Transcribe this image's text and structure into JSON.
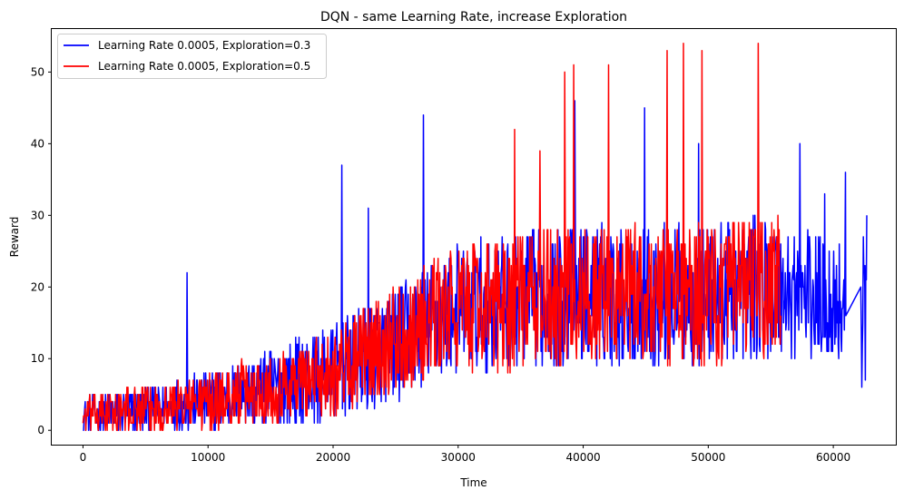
{
  "chart_data": {
    "type": "line",
    "title": "DQN - same Learning Rate, increase Exploration",
    "xlabel": "Time",
    "ylabel": "Reward",
    "xlim": [
      -2500,
      65000
    ],
    "ylim": [
      -2,
      56
    ],
    "xticks": [
      0,
      10000,
      20000,
      30000,
      40000,
      50000,
      60000
    ],
    "xtick_labels": [
      "0",
      "10000",
      "20000",
      "30000",
      "40000",
      "50000",
      "60000"
    ],
    "yticks": [
      0,
      10,
      20,
      30,
      40,
      50
    ],
    "ytick_labels": [
      "0",
      "10",
      "20",
      "30",
      "40",
      "50"
    ],
    "grid": false,
    "legend_position": "top-left",
    "series": [
      {
        "name": "Learning Rate 0.0005, Exploration=0.3",
        "color": "#0000ff",
        "x_range": [
          0,
          62700
        ],
        "trend": [
          [
            0,
            2
          ],
          [
            10000,
            4
          ],
          [
            20000,
            8
          ],
          [
            25000,
            12
          ],
          [
            30000,
            17
          ],
          [
            40000,
            19
          ],
          [
            50000,
            19
          ],
          [
            55000,
            20
          ],
          [
            60000,
            18
          ],
          [
            62700,
            18
          ]
        ],
        "spread": [
          [
            0,
            2.5
          ],
          [
            10000,
            4
          ],
          [
            20000,
            7
          ],
          [
            30000,
            9
          ],
          [
            40000,
            10
          ],
          [
            55000,
            10
          ],
          [
            62700,
            9
          ]
        ],
        "peaks": [
          [
            8300,
            22
          ],
          [
            20700,
            37
          ],
          [
            22800,
            31
          ],
          [
            27200,
            44
          ],
          [
            39300,
            46
          ],
          [
            44900,
            45
          ],
          [
            49200,
            40
          ],
          [
            57300,
            40
          ],
          [
            59300,
            33
          ],
          [
            62500,
            36
          ]
        ],
        "gap_segment": [
          [
            61000,
            16
          ],
          [
            62200,
            20
          ]
        ]
      },
      {
        "name": "Learning Rate 0.0005, Exploration=0.5",
        "color": "#ff0000",
        "x_range": [
          0,
          55800
        ],
        "trend": [
          [
            0,
            2
          ],
          [
            10000,
            4
          ],
          [
            20000,
            8
          ],
          [
            25000,
            13
          ],
          [
            30000,
            17
          ],
          [
            40000,
            19
          ],
          [
            50000,
            19
          ],
          [
            55800,
            20
          ]
        ],
        "spread": [
          [
            0,
            2.5
          ],
          [
            10000,
            4
          ],
          [
            20000,
            6
          ],
          [
            30000,
            9
          ],
          [
            40000,
            10
          ],
          [
            55800,
            10
          ]
        ],
        "peaks": [
          [
            34500,
            42
          ],
          [
            36500,
            39
          ],
          [
            38500,
            50
          ],
          [
            39200,
            51
          ],
          [
            42000,
            51
          ],
          [
            46700,
            53
          ],
          [
            48000,
            54
          ],
          [
            49500,
            53
          ],
          [
            54000,
            54
          ]
        ]
      }
    ]
  }
}
